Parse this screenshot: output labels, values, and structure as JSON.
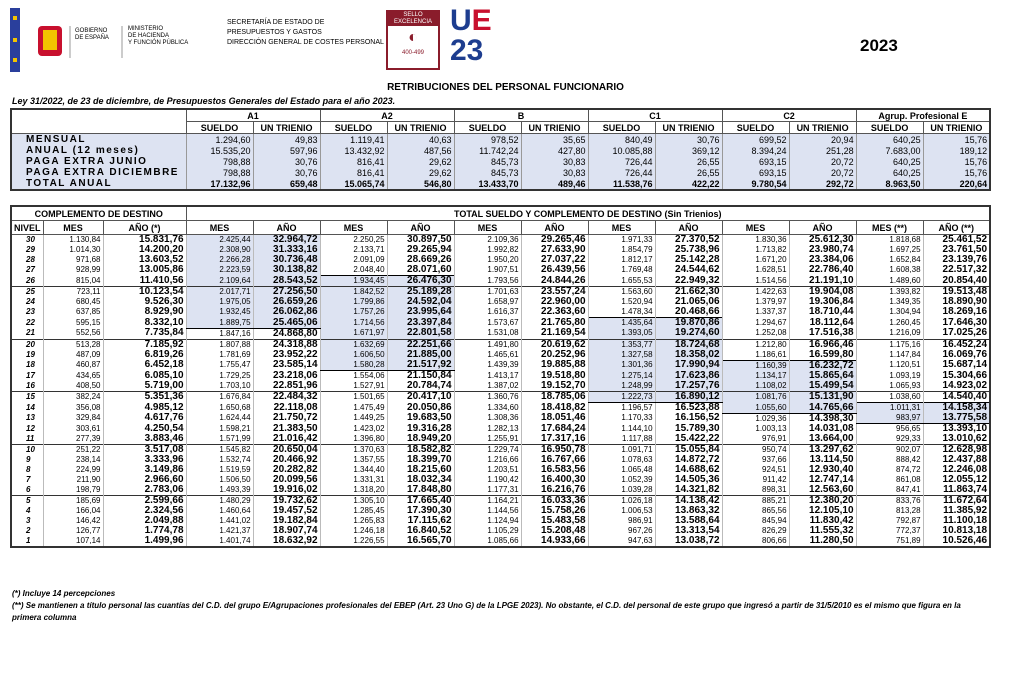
{
  "header": {
    "gov": [
      "GOBIERNO",
      "DE ESPAÑA"
    ],
    "ministry": [
      "MINISTERIO",
      "DE HACIENDA",
      "Y FUNCIÓN PÚBLICA"
    ],
    "secretariat": [
      "SECRETARÍA DE ESTADO DE",
      "PRESUPUESTOS Y GASTOS",
      "DIRECCIÓN GENERAL DE COSTES PERSONAL"
    ],
    "seal": [
      "SELLO",
      "EXCELENCIA",
      "400-499"
    ],
    "logo": [
      "U",
      "E",
      "23"
    ],
    "year": "2023"
  },
  "title": "RETRIBUCIONES DEL PERSONAL FUNCIONARIO",
  "law": "Ley 31/2022, de 23 de diciembre, de Presupuestos Generales del Estado para el año 2023.",
  "base_table": {
    "groups": [
      "A1",
      "A2",
      "B",
      "C1",
      "C2",
      "Agrup. Profesional E"
    ],
    "subheaders": [
      "SUELDO",
      "UN TRIENIO"
    ],
    "rows": [
      {
        "label": "MENSUAL",
        "values": [
          "1.294,60",
          "49,83",
          "1.119,41",
          "40,63",
          "978,52",
          "35,65",
          "840,49",
          "30,76",
          "699,52",
          "20,94",
          "640,25",
          "15,76"
        ]
      },
      {
        "label": "ANUAL (12 meses)",
        "values": [
          "15.535,20",
          "597,96",
          "13.432,92",
          "487,56",
          "11.742,24",
          "427,80",
          "10.085,88",
          "369,12",
          "8.394,24",
          "251,28",
          "7.683,00",
          "189,12"
        ]
      },
      {
        "label": "PAGA EXTRA JUNIO",
        "values": [
          "798,88",
          "30,76",
          "816,41",
          "29,62",
          "845,73",
          "30,83",
          "726,44",
          "26,55",
          "693,15",
          "20,72",
          "640,25",
          "15,76"
        ]
      },
      {
        "label": "PAGA EXTRA DICIEMBRE",
        "values": [
          "798,88",
          "30,76",
          "816,41",
          "29,62",
          "845,73",
          "30,83",
          "726,44",
          "26,55",
          "693,15",
          "20,72",
          "640,25",
          "15,76"
        ]
      },
      {
        "label": "TOTAL ANUAL",
        "values": [
          "17.132,96",
          "659,48",
          "15.065,74",
          "546,80",
          "13.433,70",
          "489,46",
          "11.538,76",
          "422,22",
          "9.780,54",
          "292,72",
          "8.963,50",
          "220,64"
        ]
      }
    ]
  },
  "cd_table": {
    "left_title": "COMPLEMENTO DE DESTINO",
    "right_title": "TOTAL SUELDO Y COMPLEMENTO DE DESTINO (Sin Trienios)",
    "headers": [
      "NIVEL",
      "MES",
      "AÑO (*)",
      "MES",
      "AÑO",
      "MES",
      "AÑO",
      "MES",
      "AÑO",
      "MES",
      "AÑO",
      "MES",
      "AÑO",
      "MES (**)",
      "AÑO (**)"
    ],
    "rows": [
      [
        "30",
        "1.130,84",
        "15.831,76",
        "2.425,44",
        "32.964,72",
        "2.250,25",
        "30.897,50",
        "2.109,36",
        "29.265,46",
        "1.971,33",
        "27.370,52",
        "1.830,36",
        "25.612,30",
        "1.818,68",
        "25.461,52"
      ],
      [
        "29",
        "1.014,30",
        "14.200,20",
        "2.308,90",
        "31.333,16",
        "2.133,71",
        "29.265,94",
        "1.992,82",
        "27.633,90",
        "1.854,79",
        "25.738,96",
        "1.713,82",
        "23.980,74",
        "1.697,25",
        "23.761,50"
      ],
      [
        "28",
        "971,68",
        "13.603,52",
        "2.266,28",
        "30.736,48",
        "2.091,09",
        "28.669,26",
        "1.950,20",
        "27.037,22",
        "1.812,17",
        "25.142,28",
        "1.671,20",
        "23.384,06",
        "1.652,84",
        "23.139,76"
      ],
      [
        "27",
        "928,99",
        "13.005,86",
        "2.223,59",
        "30.138,82",
        "2.048,40",
        "28.071,60",
        "1.907,51",
        "26.439,56",
        "1.769,48",
        "24.544,62",
        "1.628,51",
        "22.786,40",
        "1.608,38",
        "22.517,32"
      ],
      [
        "26",
        "815,04",
        "11.410,56",
        "2.109,64",
        "28.543,52",
        "1.934,45",
        "26.476,30",
        "1.793,56",
        "24.844,26",
        "1.655,53",
        "22.949,32",
        "1.514,56",
        "21.191,10",
        "1.489,60",
        "20.854,40"
      ],
      [
        "25",
        "723,11",
        "10.123,54",
        "2.017,71",
        "27.256,50",
        "1.842,52",
        "25.189,28",
        "1.701,63",
        "23.557,24",
        "1.563,60",
        "21.662,30",
        "1.422,63",
        "19.904,08",
        "1.393,82",
        "19.513,48"
      ],
      [
        "24",
        "680,45",
        "9.526,30",
        "1.975,05",
        "26.659,26",
        "1.799,86",
        "24.592,04",
        "1.658,97",
        "22.960,00",
        "1.520,94",
        "21.065,06",
        "1.379,97",
        "19.306,84",
        "1.349,35",
        "18.890,90"
      ],
      [
        "23",
        "637,85",
        "8.929,90",
        "1.932,45",
        "26.062,86",
        "1.757,26",
        "23.995,64",
        "1.616,37",
        "22.363,60",
        "1.478,34",
        "20.468,66",
        "1.337,37",
        "18.710,44",
        "1.304,94",
        "18.269,16"
      ],
      [
        "22",
        "595,15",
        "8.332,10",
        "1.889,75",
        "25.465,06",
        "1.714,56",
        "23.397,84",
        "1.573,67",
        "21.765,80",
        "1.435,64",
        "19.870,86",
        "1.294,67",
        "18.112,64",
        "1.260,45",
        "17.646,30"
      ],
      [
        "21",
        "552,56",
        "7.735,84",
        "1.847,16",
        "24.868,80",
        "1.671,97",
        "22.801,58",
        "1.531,08",
        "21.169,54",
        "1.393,05",
        "19.274,60",
        "1.252,08",
        "17.516,38",
        "1.216,09",
        "17.025,26"
      ],
      [
        "20",
        "513,28",
        "7.185,92",
        "1.807,88",
        "24.318,88",
        "1.632,69",
        "22.251,66",
        "1.491,80",
        "20.619,62",
        "1.353,77",
        "18.724,68",
        "1.212,80",
        "16.966,46",
        "1.175,16",
        "16.452,24"
      ],
      [
        "19",
        "487,09",
        "6.819,26",
        "1.781,69",
        "23.952,22",
        "1.606,50",
        "21.885,00",
        "1.465,61",
        "20.252,96",
        "1.327,58",
        "18.358,02",
        "1.186,61",
        "16.599,80",
        "1.147,84",
        "16.069,76"
      ],
      [
        "18",
        "460,87",
        "6.452,18",
        "1.755,47",
        "23.585,14",
        "1.580,28",
        "21.517,92",
        "1.439,39",
        "19.885,88",
        "1.301,36",
        "17.990,94",
        "1.160,39",
        "16.232,72",
        "1.120,51",
        "15.687,14"
      ],
      [
        "17",
        "434,65",
        "6.085,10",
        "1.729,25",
        "23.218,06",
        "1.554,06",
        "21.150,84",
        "1.413,17",
        "19.518,80",
        "1.275,14",
        "17.623,86",
        "1.134,17",
        "15.865,64",
        "1.093,19",
        "15.304,66"
      ],
      [
        "16",
        "408,50",
        "5.719,00",
        "1.703,10",
        "22.851,96",
        "1.527,91",
        "20.784,74",
        "1.387,02",
        "19.152,70",
        "1.248,99",
        "17.257,76",
        "1.108,02",
        "15.499,54",
        "1.065,93",
        "14.923,02"
      ],
      [
        "15",
        "382,24",
        "5.351,36",
        "1.676,84",
        "22.484,32",
        "1.501,65",
        "20.417,10",
        "1.360,76",
        "18.785,06",
        "1.222,73",
        "16.890,12",
        "1.081,76",
        "15.131,90",
        "1.038,60",
        "14.540,40"
      ],
      [
        "14",
        "356,08",
        "4.985,12",
        "1.650,68",
        "22.118,08",
        "1.475,49",
        "20.050,86",
        "1.334,60",
        "18.418,82",
        "1.196,57",
        "16.523,88",
        "1.055,60",
        "14.765,66",
        "1.011,31",
        "14.158,34"
      ],
      [
        "13",
        "329,84",
        "4.617,76",
        "1.624,44",
        "21.750,72",
        "1.449,25",
        "19.683,50",
        "1.308,36",
        "18.051,46",
        "1.170,33",
        "16.156,52",
        "1.029,36",
        "14.398,30",
        "983,97",
        "13.775,58"
      ],
      [
        "12",
        "303,61",
        "4.250,54",
        "1.598,21",
        "21.383,50",
        "1.423,02",
        "19.316,28",
        "1.282,13",
        "17.684,24",
        "1.144,10",
        "15.789,30",
        "1.003,13",
        "14.031,08",
        "956,65",
        "13.393,10"
      ],
      [
        "11",
        "277,39",
        "3.883,46",
        "1.571,99",
        "21.016,42",
        "1.396,80",
        "18.949,20",
        "1.255,91",
        "17.317,16",
        "1.117,88",
        "15.422,22",
        "976,91",
        "13.664,00",
        "929,33",
        "13.010,62"
      ],
      [
        "10",
        "251,22",
        "3.517,08",
        "1.545,82",
        "20.650,04",
        "1.370,63",
        "18.582,82",
        "1.229,74",
        "16.950,78",
        "1.091,71",
        "15.055,84",
        "950,74",
        "13.297,62",
        "902,07",
        "12.628,98"
      ],
      [
        "9",
        "238,14",
        "3.333,96",
        "1.532,74",
        "20.466,92",
        "1.357,55",
        "18.399,70",
        "1.216,66",
        "16.767,66",
        "1.078,63",
        "14.872,72",
        "937,66",
        "13.114,50",
        "888,42",
        "12.437,88"
      ],
      [
        "8",
        "224,99",
        "3.149,86",
        "1.519,59",
        "20.282,82",
        "1.344,40",
        "18.215,60",
        "1.203,51",
        "16.583,56",
        "1.065,48",
        "14.688,62",
        "924,51",
        "12.930,40",
        "874,72",
        "12.246,08"
      ],
      [
        "7",
        "211,90",
        "2.966,60",
        "1.506,50",
        "20.099,56",
        "1.331,31",
        "18.032,34",
        "1.190,42",
        "16.400,30",
        "1.052,39",
        "14.505,36",
        "911,42",
        "12.747,14",
        "861,08",
        "12.055,12"
      ],
      [
        "6",
        "198,79",
        "2.783,06",
        "1.493,39",
        "19.916,02",
        "1.318,20",
        "17.848,80",
        "1.177,31",
        "16.216,76",
        "1.039,28",
        "14.321,82",
        "898,31",
        "12.563,60",
        "847,41",
        "11.863,74"
      ],
      [
        "5",
        "185,69",
        "2.599,66",
        "1.480,29",
        "19.732,62",
        "1.305,10",
        "17.665,40",
        "1.164,21",
        "16.033,36",
        "1.026,18",
        "14.138,42",
        "885,21",
        "12.380,20",
        "833,76",
        "11.672,64"
      ],
      [
        "4",
        "166,04",
        "2.324,56",
        "1.460,64",
        "19.457,52",
        "1.285,45",
        "17.390,30",
        "1.144,56",
        "15.758,26",
        "1.006,53",
        "13.863,32",
        "865,56",
        "12.105,10",
        "813,28",
        "11.385,92"
      ],
      [
        "3",
        "146,42",
        "2.049,88",
        "1.441,02",
        "19.182,84",
        "1.265,83",
        "17.115,62",
        "1.124,94",
        "15.483,58",
        "986,91",
        "13.588,64",
        "845,94",
        "11.830,42",
        "792,87",
        "11.100,18"
      ],
      [
        "2",
        "126,77",
        "1.774,78",
        "1.421,37",
        "18.907,74",
        "1.246,18",
        "16.840,52",
        "1.105,29",
        "15.208,48",
        "967,26",
        "13.313,54",
        "826,29",
        "11.555,32",
        "772,37",
        "10.813,18"
      ],
      [
        "1",
        "107,14",
        "1.499,96",
        "1.401,74",
        "18.632,92",
        "1.226,55",
        "16.565,70",
        "1.085,66",
        "14.933,66",
        "947,63",
        "13.038,72",
        "806,66",
        "11.280,50",
        "751,89",
        "10.526,46"
      ]
    ]
  },
  "notes": [
    "(*) Incluye 14 percepciones",
    "(**) Se mantienen a título personal las cuantías del C.D. del grupo E/Agrupaciones profesionales del EBEP (Art. 23 Uno G) de la LPGE 2023). No obstante, el C.D. del personal de este grupo que ingresó a partir de 31/5/2010 es el mismo que figura en la primera columna"
  ]
}
